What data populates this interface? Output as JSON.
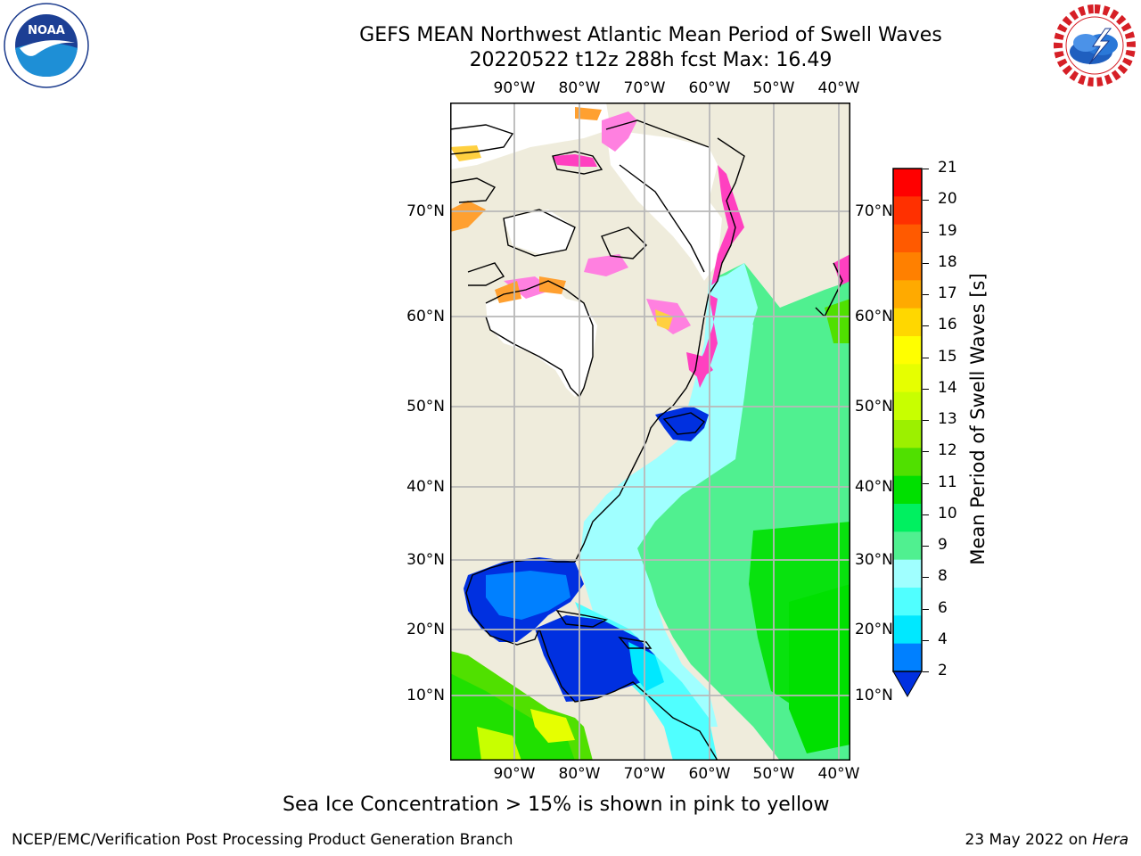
{
  "header": {
    "title_line1": "GEFS MEAN Northwest Atlantic Mean Period of Swell Waves",
    "title_line2": "20220522 t12z 288h fcst   Max: 16.49"
  },
  "logos": {
    "noaa_text": "NOAA",
    "noaa_ring_text": "NATIONAL OCEANIC AND ATMOSPHERIC ADMINISTRATION · U.S. DEPARTMENT OF COMMERCE",
    "nws_ring_text": "NATIONAL WEATHER SERVICE"
  },
  "map": {
    "lon_labels": [
      "90°W",
      "80°W",
      "70°W",
      "60°W",
      "50°W",
      "40°W"
    ],
    "lat_labels": [
      "70°N",
      "60°N",
      "50°N",
      "40°N",
      "30°N",
      "20°N",
      "10°N"
    ],
    "land_color": "#efecdc",
    "ice_colors": [
      "#ff40c0",
      "#ff80e0",
      "#ffa030",
      "#ffd040"
    ]
  },
  "colorbar": {
    "label": "Mean Period of Swell Waves [s]",
    "ticks": [
      "21",
      "20",
      "19",
      "18",
      "17",
      "16",
      "15",
      "14",
      "13",
      "12",
      "11",
      "10",
      "9",
      "8",
      "6",
      "4",
      "2"
    ],
    "colors": [
      "#ff0000",
      "#ff3000",
      "#ff5a00",
      "#ff8000",
      "#ffaa00",
      "#ffd700",
      "#ffff00",
      "#e6ff00",
      "#c8ff00",
      "#9cf000",
      "#50e000",
      "#00e000",
      "#00f060",
      "#50f090",
      "#a0ffff",
      "#50ffff",
      "#00e8ff",
      "#0080ff",
      "#0030e0"
    ]
  },
  "note": "Sea Ice Concentration > 15% is shown in pink to yellow",
  "footer": {
    "left": "NCEP/EMC/Verification Post Processing Product Generation Branch",
    "right_prefix": "23 May 2022 on ",
    "right_machine": "Hera"
  }
}
